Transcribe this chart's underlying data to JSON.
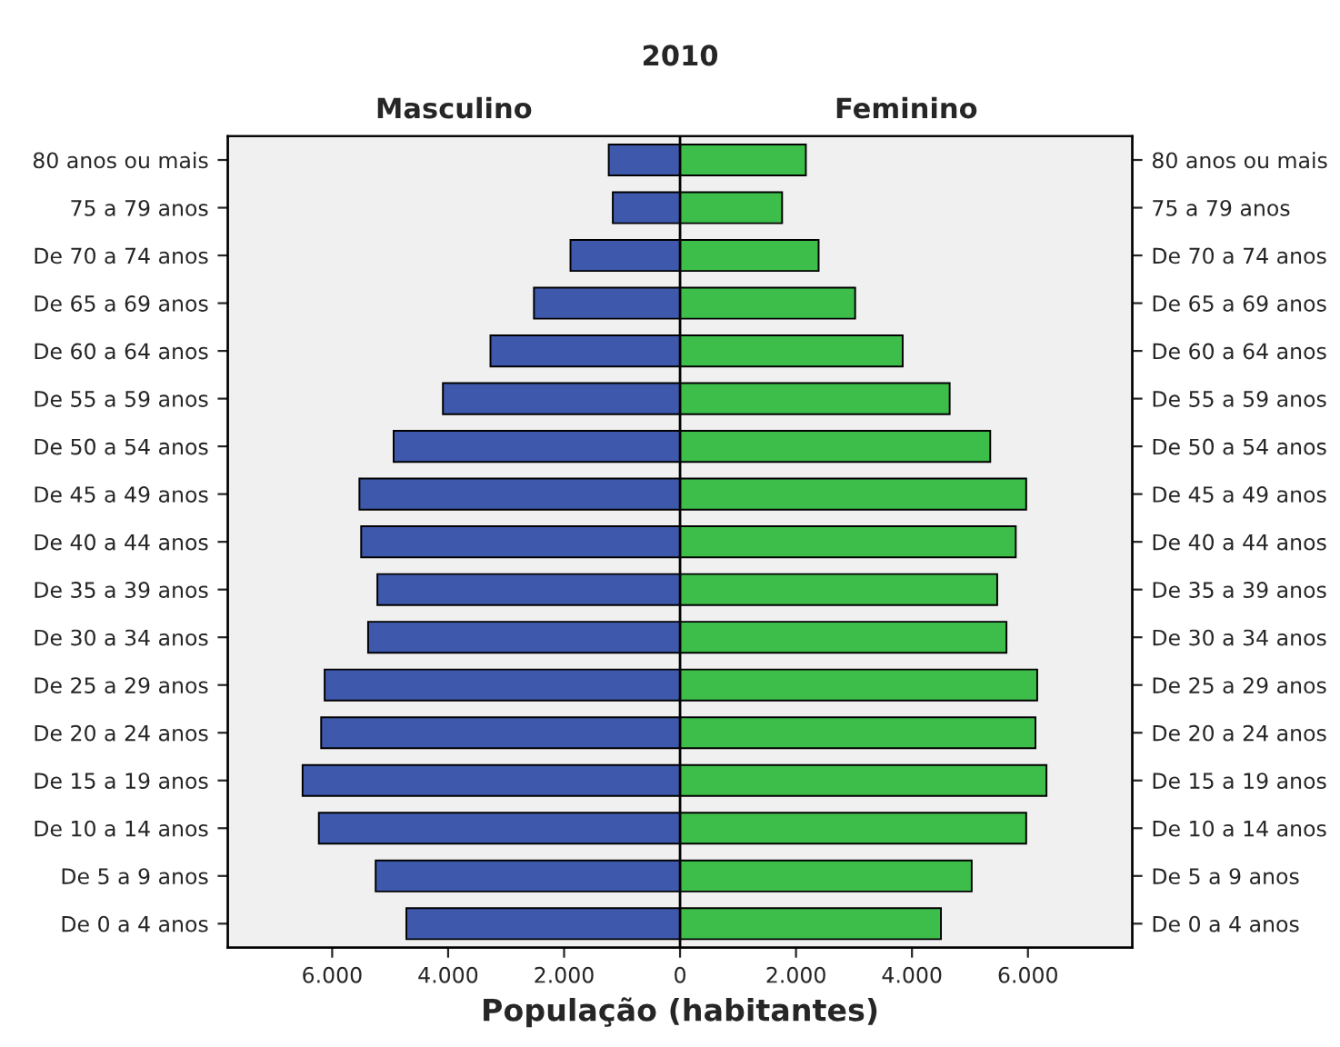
{
  "chart_data": {
    "type": "bar",
    "orientation": "horizontal",
    "title": "2010",
    "xlabel": "População (habitantes)",
    "categories": [
      "80 anos ou mais",
      "75 a 79 anos",
      "De 70 a 74 anos",
      "De 65 a 69 anos",
      "De 60 a 64 anos",
      "De 55 a 59 anos",
      "De 50 a 54 anos",
      "De 45 a 49 anos",
      "De 40 a 44 anos",
      "De 35 a 39 anos",
      "De 30 a 34 anos",
      "De 25 a 29 anos",
      "De 20 a 24 anos",
      "De 15 a 19 anos",
      "De 10 a 14 anos",
      "De 5 a 9 anos",
      "De 0 a 4 anos"
    ],
    "y2_categories": [
      "80 anos ou mais",
      "75 a 79 anos",
      "De 70 a 74 anos",
      "De 65 a 69 anos",
      "De 60 a 64 anos",
      "De 55 a 59 anos",
      "De 50 a 54 anos",
      "De 45 a 49 anos",
      "De 40 a 44 anos",
      "De 35 a 39 anos",
      "De 30 a 34 anos",
      "De 25 a 29 anos",
      "De 20 a 24 anos",
      "De 15 a 19 anos",
      "De 10 a 14 anos",
      "De 5 a 9 anos",
      "De 0 a 4 anos"
    ],
    "series": [
      {
        "name": "Masculino",
        "color": "#3e58ac",
        "values": [
          -1230,
          -1160,
          -1890,
          -2520,
          -3270,
          -4090,
          -4940,
          -5530,
          -5500,
          -5220,
          -5380,
          -6130,
          -6190,
          -6510,
          -6230,
          -5250,
          -4720
        ]
      },
      {
        "name": "Feminino",
        "color": "#3dbd4a",
        "values": [
          2170,
          1760,
          2390,
          3020,
          3840,
          4650,
          5350,
          5970,
          5790,
          5470,
          5630,
          6160,
          6130,
          6320,
          5970,
          5030,
          4500
        ]
      }
    ],
    "xlim": [
      -7800,
      7800
    ],
    "xticks": [
      {
        "value": -6000,
        "label": "6.000"
      },
      {
        "value": -4000,
        "label": "4.000"
      },
      {
        "value": -2000,
        "label": "2.000"
      },
      0,
      {
        "value": 2000,
        "label": "2.000"
      },
      {
        "value": 4000,
        "label": "4.000"
      },
      {
        "value": 6000,
        "label": "6.000"
      }
    ],
    "ref_lines": [
      {
        "axis": "x",
        "value": 0,
        "color": "#000000"
      }
    ],
    "stacked": true,
    "grid": false,
    "legend": false
  }
}
